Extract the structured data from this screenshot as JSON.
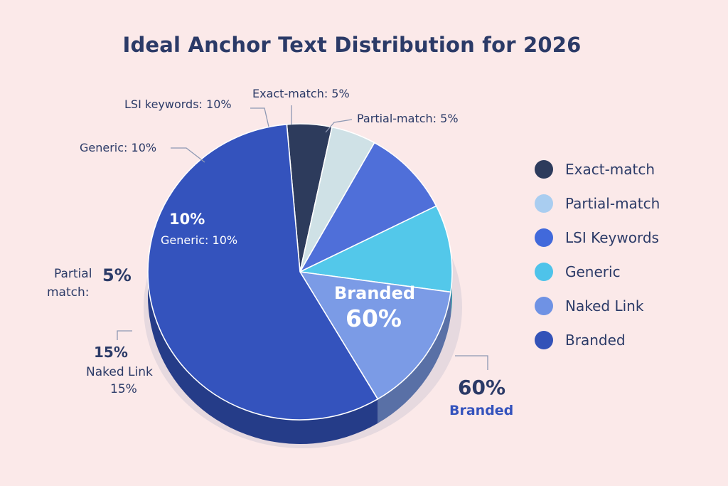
{
  "chart_data": {
    "type": "pie",
    "title": "Ideal Anchor Text Distribution for 2026",
    "slices": [
      {
        "label": "Exact-match",
        "value": 5,
        "color": "#2d3b5c"
      },
      {
        "label": "Partial-match",
        "value": 5,
        "color": "#cfe1e6"
      },
      {
        "label": "LSI Keywords",
        "value": 10,
        "color": "#4f6fd9"
      },
      {
        "label": "Generic",
        "value": 10,
        "color": "#53c8ea"
      },
      {
        "label": "Naked Link",
        "value": 15,
        "color": "#7b9be6"
      },
      {
        "label": "Branded",
        "value": 60,
        "color": "#3453bd"
      }
    ],
    "legend_position": "right"
  },
  "labels": {
    "exact": "Exact-match: 5%",
    "partial": "Partial-match: 5%",
    "lsi": "LSI keywords: 10%",
    "generic_outer": "Generic: 10%",
    "generic_pct": "10%",
    "generic_inner": "Generic: 10%",
    "partial2_word": "Partial",
    "partial2_pct": "5%",
    "partial2_word2": "match:",
    "naked_pct": "15%",
    "naked_text": "Naked Link",
    "naked_pct2": "15%",
    "branded_inner": "Branded",
    "branded_inner_pct": "60%",
    "branded_outer_pct": "60%",
    "branded_outer": "Branded"
  },
  "legend": [
    {
      "label": "Exact-match",
      "color": "#2d3b5c"
    },
    {
      "label": "Partial-match",
      "color": "#a9cdf0"
    },
    {
      "label": "LSI Keywords",
      "color": "#4169db"
    },
    {
      "label": "Generic",
      "color": "#4ec3ea"
    },
    {
      "label": "Naked Link",
      "color": "#6f92e4"
    },
    {
      "label": "Branded",
      "color": "#3352b8"
    }
  ]
}
